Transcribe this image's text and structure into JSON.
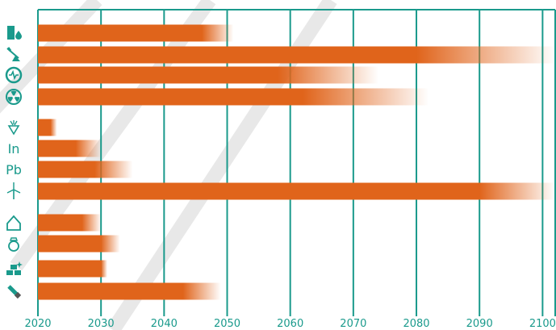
{
  "chart_data": {
    "type": "bar",
    "orientation": "horizontal",
    "title": "",
    "xlabel": "",
    "ylabel": "",
    "xlim": [
      2020,
      2102
    ],
    "x_ticks": [
      2020,
      2030,
      2040,
      2050,
      2060,
      2070,
      2080,
      2090,
      2100
    ],
    "grid": true,
    "legend": "none",
    "bar_color": "#e0641b",
    "grid_color": "#1a9a8c",
    "tick_label_color": "#1a9a8c",
    "icon_color": "#1a9a8c",
    "watermark_color": "#d9d9d9",
    "bars_fade_toward_end": true,
    "groups": [
      {
        "name": "energy",
        "rows": [
          {
            "icon": "oil-barrel-drop-icon",
            "solid_end": 2046,
            "fade_end": 2051
          },
          {
            "icon": "oil-pump-icon",
            "solid_end": 2080,
            "fade_end": 2102
          },
          {
            "icon": "gas-icon",
            "solid_end": 2058,
            "fade_end": 2074
          },
          {
            "icon": "radiation-icon",
            "solid_end": 2062,
            "fade_end": 2082
          }
        ]
      },
      {
        "name": "metals-a",
        "rows": [
          {
            "icon": "ore-icon",
            "solid_end": 2022,
            "fade_end": 2023
          },
          {
            "icon": "indium-icon",
            "label": "In",
            "solid_end": 2026,
            "fade_end": 2030
          },
          {
            "icon": "lead-icon",
            "label": "Pb",
            "solid_end": 2029,
            "fade_end": 2035
          },
          {
            "icon": "wind-turbine-icon",
            "solid_end": 2090,
            "fade_end": 2102
          }
        ]
      },
      {
        "name": "metals-b",
        "rows": [
          {
            "icon": "house-icon",
            "solid_end": 2027,
            "fade_end": 2030
          },
          {
            "icon": "ring-icon",
            "solid_end": 2030,
            "fade_end": 2033
          },
          {
            "icon": "gold-bars-icon",
            "solid_end": 2030,
            "fade_end": 2031
          },
          {
            "icon": "flashlight-icon",
            "solid_end": 2043,
            "fade_end": 2049
          }
        ]
      }
    ]
  }
}
